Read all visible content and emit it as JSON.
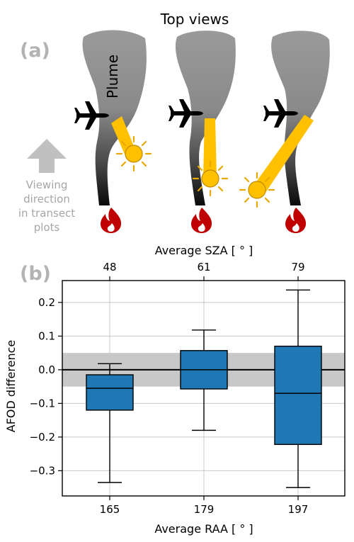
{
  "panel_a": {
    "panel_label": "(a)",
    "title": "Top views",
    "plume_label": "Plume",
    "viewing_text": [
      "Viewing",
      "direction",
      "in transect",
      "plots"
    ],
    "colors": {
      "plume": "#808080",
      "sun": "#FFC000",
      "sun_outline": "#C08A00",
      "fire": "#C00000",
      "plane": "#000000",
      "arrow": "#C0C0C0"
    },
    "icons": [
      "plane-icon",
      "sun-icon",
      "fire-icon",
      "up-arrow-icon"
    ]
  },
  "chart_data": {
    "type": "box",
    "panel_label": "(b)",
    "categories": [
      "165",
      "179",
      "197"
    ],
    "top_categories": [
      "48",
      "61",
      "79"
    ],
    "xlabel": "Average RAA [ ° ]",
    "top_xlabel": "Average SZA [ ° ]",
    "ylabel": "AFOD difference",
    "ylim": [
      -0.375,
      0.265
    ],
    "yticks": [
      -0.3,
      -0.2,
      -0.1,
      0.0,
      0.1,
      0.2
    ],
    "ytick_labels": [
      "−0.3",
      "−0.2",
      "−0.1",
      "0.0",
      "0.1",
      "0.2"
    ],
    "grid": true,
    "band": [
      -0.05,
      0.05
    ],
    "boxes": [
      {
        "category": "165",
        "whisker_low": -0.335,
        "q1": -0.12,
        "median": -0.055,
        "q3": -0.015,
        "whisker_high": 0.018
      },
      {
        "category": "179",
        "whisker_low": -0.18,
        "q1": -0.057,
        "median": 0.0,
        "q3": 0.057,
        "whisker_high": 0.118
      },
      {
        "category": "197",
        "whisker_low": -0.35,
        "q1": -0.222,
        "median": -0.07,
        "q3": 0.07,
        "whisker_high": 0.237
      }
    ],
    "colors": {
      "box": "#1f77b4",
      "band": "#c8c8c8",
      "grid": "#c8c8c8",
      "zero_line": "#000000"
    }
  }
}
